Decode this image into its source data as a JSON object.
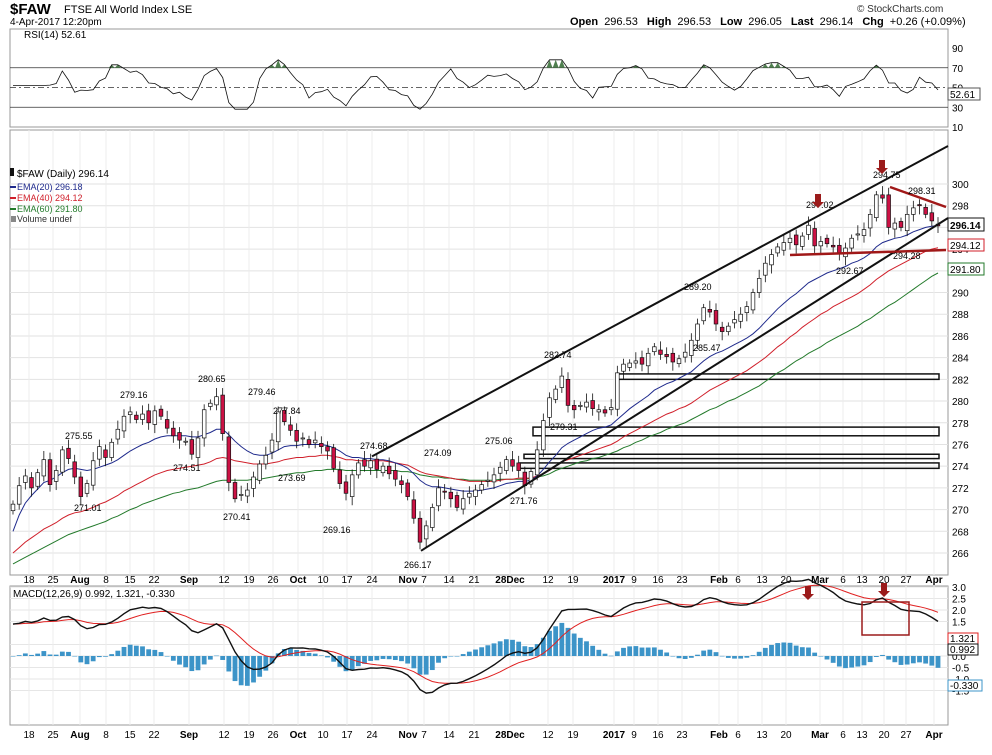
{
  "header": {
    "symbol": "$FAW",
    "name": "FTSE All World Index  LSE",
    "date": "4-Apr-2017 12:20pm",
    "brand": "© StockCharts.com",
    "open_label": "Open",
    "open": "296.53",
    "high_label": "High",
    "high": "296.53",
    "low_label": "Low",
    "low": "296.05",
    "last_label": "Last",
    "last": "296.14",
    "chg_label": "Chg",
    "chg": "+0.26 (+0.09%)"
  },
  "rsi": {
    "label": "RSI(14) 52.61",
    "value_tag": "52.61",
    "ticks": [
      "90",
      "70",
      "50",
      "30",
      "10"
    ]
  },
  "legend": {
    "title": "$FAW (Daily) 296.14",
    "ema20": "EMA(20) 296.18",
    "ema40": "EMA(40) 294.12",
    "ema60": "EMA(60) 291.80",
    "volume": "Volume undef"
  },
  "price_tags": [
    "296.14",
    "294.12",
    "291.80"
  ],
  "macd": {
    "label": "MACD(12,26,9) 0.992, 1.321, -0.330",
    "tags": [
      "1.321",
      "0.992",
      "-0.330"
    ],
    "ticks": [
      "3.0",
      "2.5",
      "2.0",
      "1.5",
      "0.5",
      "0.0",
      "-0.5",
      "-1.0",
      "-1.5"
    ]
  },
  "colors": {
    "up": "#ffffff",
    "down": "#cc1144",
    "ema20": "#1f2a8c",
    "ema40": "#d01f2a",
    "ema60": "#237a2b",
    "macd_hist": "#3c94c8",
    "arrow": "#9b1b1b",
    "rsi_fill": "#4f7f4f"
  },
  "chart_data": {
    "type": "candlestick",
    "x_ticks": [
      "18",
      "25",
      "Aug",
      "8",
      "15",
      "22",
      "Sep",
      "12",
      "19",
      "26",
      "Oct",
      "10",
      "17",
      "24",
      "Nov",
      "7",
      "14",
      "21",
      "28Dec",
      "12",
      "19",
      "2017",
      "9",
      "16",
      "23",
      "Feb",
      "6",
      "13",
      "20",
      "Mar",
      "6",
      "13",
      "20",
      "27",
      "Apr"
    ],
    "y_ticks": [
      "300",
      "298",
      "296",
      "294",
      "292",
      "290",
      "288",
      "286",
      "284",
      "282",
      "280",
      "278",
      "276",
      "274",
      "272",
      "270",
      "268",
      "266"
    ],
    "ylim": [
      265,
      302
    ],
    "annotations": [
      "271.01",
      "275.55",
      "279.16",
      "274.51",
      "280.65",
      "270.41",
      "279.46",
      "277.84",
      "273.69",
      "269.16",
      "274.68",
      "266.17",
      "274.09",
      "275.06",
      "271.76",
      "282.74",
      "279.31",
      "289.20",
      "285.47",
      "297.02",
      "292.67",
      "294.75",
      "298.31",
      "294.28"
    ],
    "close": [
      270.5,
      272.2,
      273.1,
      272.0,
      273.4,
      274.6,
      272.3,
      273.6,
      275.5,
      274.7,
      273.0,
      271.2,
      272.4,
      274.5,
      275.8,
      274.8,
      276.2,
      277.4,
      278.6,
      279.0,
      278.3,
      278.8,
      278.0,
      279.1,
      278.6,
      277.5,
      276.8,
      276.4,
      276.3,
      275.1,
      276.6,
      279.2,
      279.8,
      280.4,
      277.0,
      272.5,
      271.0,
      271.4,
      271.8,
      273.0,
      274.2,
      275.0,
      276.4,
      279.0,
      278.1,
      277.3,
      276.3,
      276.6,
      276.0,
      276.4,
      275.8,
      275.4,
      273.8,
      272.4,
      271.5,
      273.2,
      274.3,
      274.0,
      274.5,
      273.7,
      274.0,
      273.3,
      272.8,
      272.3,
      271.2,
      269.2,
      267.0,
      268.5,
      270.2,
      272.0,
      271.6,
      271.0,
      270.2,
      271.0,
      271.5,
      271.8,
      272.3,
      272.7,
      273.2,
      273.9,
      274.6,
      274.0,
      273.6,
      272.2,
      273.5,
      275.5,
      278.2,
      280.3,
      281.1,
      282.3,
      279.6,
      279.2,
      279.6,
      279.9,
      279.3,
      279.2,
      278.9,
      279.4,
      282.6,
      283.4,
      283.5,
      283.7,
      283.4,
      284.4,
      285.0,
      284.3,
      284.1,
      283.6,
      283.9,
      284.5,
      285.6,
      287.1,
      288.6,
      288.2,
      287.1,
      286.4,
      286.9,
      287.5,
      288.0,
      288.7,
      290.0,
      291.3,
      292.7,
      293.5,
      294.2,
      294.6,
      295.0,
      294.4,
      295.2,
      296.2,
      294.3,
      294.7,
      294.5,
      294.2,
      293.6,
      294.1,
      295.0,
      295.4,
      295.8,
      297.2,
      299.0,
      298.7,
      296.0,
      296.4,
      296.0,
      297.2,
      297.8,
      298.0,
      297.2,
      296.6,
      296.14
    ],
    "ema20": [
      268.0,
      269.5,
      270.6,
      271.3,
      271.9,
      272.5,
      272.7,
      273.0,
      273.4,
      273.7,
      273.8,
      273.7,
      273.6,
      273.7,
      273.9,
      274.1,
      274.3,
      274.6,
      275.0,
      275.4,
      275.7,
      276.0,
      276.2,
      276.5,
      276.7,
      276.8,
      276.8,
      276.8,
      276.8,
      276.7,
      276.7,
      276.9,
      277.1,
      277.4,
      277.4,
      276.9,
      276.3,
      275.8,
      275.4,
      275.1,
      275.0,
      275.0,
      275.2,
      275.5,
      275.8,
      275.9,
      275.9,
      276.0,
      276.0,
      276.0,
      276.0,
      275.9,
      275.7,
      275.4,
      275.0,
      274.8,
      274.8,
      274.7,
      274.7,
      274.6,
      274.6,
      274.5,
      274.3,
      274.1,
      273.8,
      273.3,
      272.7,
      272.3,
      272.1,
      272.1,
      272.0,
      271.9,
      271.8,
      271.7,
      271.7,
      271.7,
      271.8,
      271.9,
      272.0,
      272.2,
      272.4,
      272.5,
      272.6,
      272.6,
      272.7,
      273.1,
      273.7,
      274.4,
      275.0,
      275.7,
      276.1,
      276.4,
      276.7,
      277.0,
      277.3,
      277.5,
      277.6,
      277.8,
      278.3,
      278.8,
      279.3,
      279.7,
      280.1,
      280.5,
      281.0,
      281.3,
      281.6,
      281.8,
      282.1,
      282.4,
      282.7,
      283.2,
      283.7,
      284.1,
      284.4,
      284.6,
      284.9,
      285.2,
      285.5,
      285.8,
      286.2,
      286.7,
      287.3,
      287.9,
      288.5,
      289.0,
      289.5,
      289.9,
      290.4,
      290.9,
      291.2,
      291.5,
      291.8,
      292.0,
      292.2,
      292.4,
      292.7,
      292.9,
      293.2,
      293.6,
      294.2,
      294.6,
      294.8,
      295.0,
      295.1,
      295.3,
      295.6,
      295.8,
      296.0,
      296.1,
      296.18
    ],
    "ema40": [
      266.0,
      266.5,
      267.0,
      267.4,
      267.8,
      268.2,
      268.5,
      268.8,
      269.2,
      269.5,
      269.7,
      269.8,
      270.0,
      270.2,
      270.5,
      270.7,
      271.0,
      271.3,
      271.7,
      272.0,
      272.3,
      272.6,
      272.9,
      273.2,
      273.4,
      273.6,
      273.7,
      273.8,
      273.9,
      274.0,
      274.1,
      274.2,
      274.4,
      274.7,
      274.8,
      274.7,
      274.5,
      274.4,
      274.3,
      274.2,
      274.2,
      274.2,
      274.3,
      274.4,
      274.6,
      274.7,
      274.8,
      274.8,
      274.9,
      274.9,
      275.0,
      275.0,
      274.9,
      274.8,
      274.6,
      274.6,
      274.5,
      274.5,
      274.5,
      274.5,
      274.5,
      274.4,
      274.3,
      274.2,
      274.1,
      273.8,
      273.5,
      273.3,
      273.2,
      273.1,
      273.0,
      272.9,
      272.8,
      272.7,
      272.6,
      272.6,
      272.6,
      272.6,
      272.6,
      272.7,
      272.8,
      272.8,
      272.9,
      272.9,
      272.9,
      273.1,
      273.3,
      273.6,
      274.0,
      274.4,
      274.6,
      274.8,
      275.0,
      275.2,
      275.4,
      275.6,
      275.8,
      276.0,
      276.3,
      276.7,
      277.0,
      277.3,
      277.6,
      277.9,
      278.2,
      278.5,
      278.8,
      279.0,
      279.3,
      279.5,
      279.8,
      280.2,
      280.6,
      281.0,
      281.3,
      281.6,
      281.9,
      282.2,
      282.5,
      282.8,
      283.2,
      283.6,
      284.0,
      284.5,
      285.0,
      285.4,
      285.9,
      286.3,
      286.8,
      287.2,
      287.6,
      288.0,
      288.3,
      288.7,
      289.0,
      289.3,
      289.6,
      289.9,
      290.3,
      290.7,
      291.2,
      291.6,
      292.0,
      292.3,
      292.6,
      292.9,
      293.2,
      293.5,
      293.8,
      294.0,
      294.12
    ],
    "ema60": [
      265.0,
      265.3,
      265.6,
      265.9,
      266.2,
      266.5,
      266.8,
      267.1,
      267.4,
      267.7,
      267.9,
      268.1,
      268.3,
      268.5,
      268.7,
      268.9,
      269.2,
      269.4,
      269.7,
      270.0,
      270.2,
      270.5,
      270.7,
      270.9,
      271.1,
      271.3,
      271.5,
      271.6,
      271.8,
      271.9,
      272.0,
      272.2,
      272.4,
      272.6,
      272.7,
      272.7,
      272.7,
      272.7,
      272.7,
      272.8,
      272.8,
      272.9,
      273.0,
      273.1,
      273.2,
      273.3,
      273.4,
      273.4,
      273.5,
      273.6,
      273.6,
      273.7,
      273.7,
      273.7,
      273.6,
      273.6,
      273.6,
      273.6,
      273.6,
      273.6,
      273.6,
      273.6,
      273.6,
      273.5,
      273.5,
      273.4,
      273.2,
      273.1,
      273.0,
      273.0,
      272.9,
      272.9,
      272.8,
      272.8,
      272.7,
      272.7,
      272.7,
      272.7,
      272.7,
      272.8,
      272.8,
      272.8,
      272.8,
      272.8,
      272.9,
      273.0,
      273.1,
      273.3,
      273.6,
      273.8,
      274.0,
      274.2,
      274.4,
      274.5,
      274.7,
      274.8,
      275.0,
      275.2,
      275.4,
      275.7,
      275.9,
      276.2,
      276.4,
      276.7,
      276.9,
      277.1,
      277.4,
      277.6,
      277.8,
      278.0,
      278.3,
      278.6,
      278.9,
      279.2,
      279.4,
      279.7,
      280.0,
      280.2,
      280.5,
      280.8,
      281.1,
      281.4,
      281.8,
      282.2,
      282.6,
      282.9,
      283.3,
      283.7,
      284.0,
      284.4,
      284.7,
      285.0,
      285.4,
      285.7,
      286.0,
      286.3,
      286.6,
      286.9,
      287.3,
      287.6,
      288.0,
      288.4,
      288.8,
      289.1,
      289.5,
      289.9,
      290.3,
      290.7,
      291.1,
      291.5,
      291.8
    ]
  }
}
